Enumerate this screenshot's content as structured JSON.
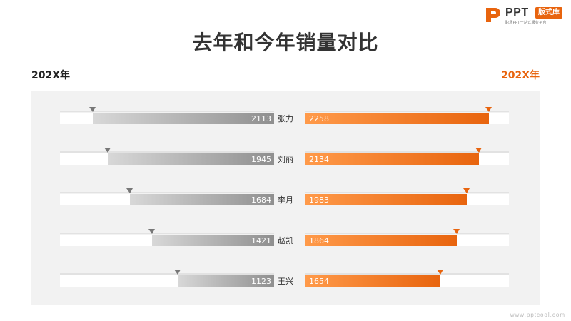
{
  "logo": {
    "text": "PPT",
    "badge": "版式库",
    "tagline": "职场PPT一站式服务平台"
  },
  "title": "去年和今年销量对比",
  "left_year": "202X年",
  "right_year": "202X年",
  "footer": "www.pptcool.com",
  "colors": {
    "gray": "#9b9b9b",
    "orange": "#E8640E",
    "accent": "#E8640E"
  },
  "chart_data": {
    "type": "bar",
    "categories": [
      "张力",
      "刘丽",
      "李月",
      "赵凯",
      "王兴"
    ],
    "series": [
      {
        "name": "202X年",
        "side": "left",
        "values": [
          2113,
          1945,
          1684,
          1421,
          1123
        ]
      },
      {
        "name": "202X年",
        "side": "right",
        "values": [
          2258,
          2134,
          1983,
          1864,
          1654
        ]
      }
    ],
    "xlim": [
      0,
      2500
    ]
  }
}
